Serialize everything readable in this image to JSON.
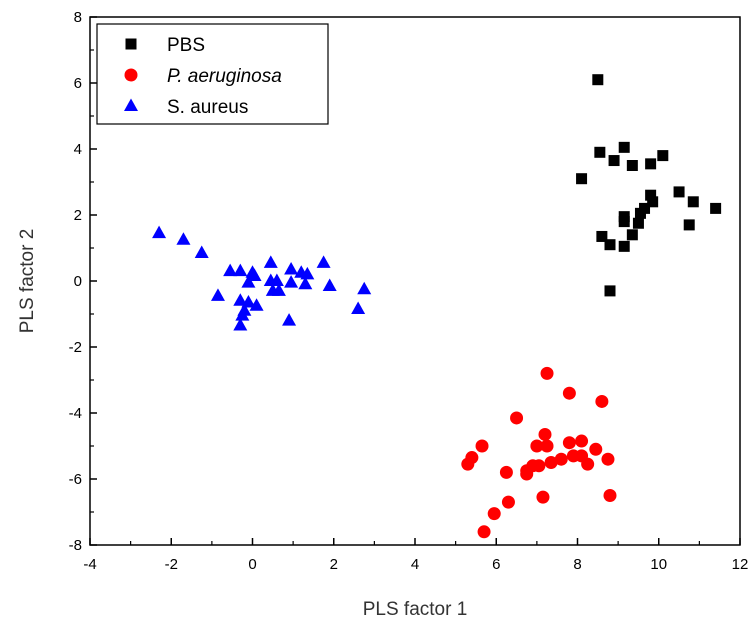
{
  "chart_data": {
    "type": "scatter",
    "title": "",
    "xlabel": "PLS factor 1",
    "ylabel": "PLS factor 2",
    "xlim": [
      -4,
      12
    ],
    "ylim": [
      -8,
      8
    ],
    "xticks": [
      -4,
      -2,
      0,
      2,
      4,
      6,
      8,
      10,
      12
    ],
    "yticks": [
      -8,
      -6,
      -4,
      -2,
      0,
      2,
      4,
      6,
      8
    ],
    "xtick_labels": [
      "-4",
      "-2",
      "0",
      "2",
      "4",
      "6",
      "8",
      "10",
      "12"
    ],
    "ytick_labels": [
      "-8",
      "-6",
      "-4",
      "-2",
      "0",
      "2",
      "4",
      "6",
      "8"
    ],
    "grid": false,
    "legend_position": "top-left",
    "series": [
      {
        "name": "PBS",
        "marker": "square",
        "italic": false,
        "color": "#000000",
        "points": [
          [
            8.5,
            6.1
          ],
          [
            8.55,
            3.9
          ],
          [
            8.9,
            3.65
          ],
          [
            9.15,
            4.05
          ],
          [
            9.35,
            3.5
          ],
          [
            9.8,
            3.55
          ],
          [
            10.1,
            3.8
          ],
          [
            8.1,
            3.1
          ],
          [
            9.8,
            2.6
          ],
          [
            10.5,
            2.7
          ],
          [
            10.85,
            2.4
          ],
          [
            11.4,
            2.2
          ],
          [
            9.65,
            2.2
          ],
          [
            9.55,
            2.05
          ],
          [
            9.85,
            2.4
          ],
          [
            9.15,
            1.95
          ],
          [
            9.15,
            1.8
          ],
          [
            9.5,
            1.75
          ],
          [
            10.75,
            1.7
          ],
          [
            8.6,
            1.35
          ],
          [
            9.35,
            1.4
          ],
          [
            8.8,
            1.1
          ],
          [
            9.15,
            1.05
          ],
          [
            8.8,
            -0.3
          ]
        ]
      },
      {
        "name": "P. aeruginosa",
        "marker": "circle",
        "italic": true,
        "color": "#ff0000",
        "points": [
          [
            7.25,
            -2.8
          ],
          [
            7.8,
            -3.4
          ],
          [
            8.6,
            -3.65
          ],
          [
            6.5,
            -4.15
          ],
          [
            7.2,
            -4.65
          ],
          [
            5.65,
            -5.0
          ],
          [
            7.0,
            -5.0
          ],
          [
            7.25,
            -5.0
          ],
          [
            7.8,
            -4.9
          ],
          [
            8.1,
            -4.85
          ],
          [
            8.45,
            -5.1
          ],
          [
            5.4,
            -5.35
          ],
          [
            5.3,
            -5.55
          ],
          [
            6.25,
            -5.8
          ],
          [
            6.75,
            -5.85
          ],
          [
            6.75,
            -5.75
          ],
          [
            6.9,
            -5.6
          ],
          [
            7.05,
            -5.6
          ],
          [
            7.35,
            -5.5
          ],
          [
            7.6,
            -5.4
          ],
          [
            7.9,
            -5.3
          ],
          [
            8.1,
            -5.3
          ],
          [
            8.25,
            -5.55
          ],
          [
            8.75,
            -5.4
          ],
          [
            7.15,
            -6.55
          ],
          [
            8.8,
            -6.5
          ],
          [
            6.3,
            -6.7
          ],
          [
            5.95,
            -7.05
          ],
          [
            5.7,
            -7.6
          ]
        ]
      },
      {
        "name": "S. aureus",
        "marker": "triangle",
        "italic": false,
        "color": "#0000ff",
        "points": [
          [
            -2.3,
            1.45
          ],
          [
            -1.7,
            1.25
          ],
          [
            -1.25,
            0.85
          ],
          [
            -0.55,
            0.3
          ],
          [
            -0.3,
            0.3
          ],
          [
            0.0,
            0.25
          ],
          [
            0.05,
            0.15
          ],
          [
            -0.1,
            -0.05
          ],
          [
            0.45,
            0.55
          ],
          [
            0.95,
            0.35
          ],
          [
            1.2,
            0.25
          ],
          [
            1.35,
            0.2
          ],
          [
            1.75,
            0.55
          ],
          [
            0.45,
            0.0
          ],
          [
            0.6,
            0.0
          ],
          [
            0.95,
            -0.05
          ],
          [
            1.3,
            -0.1
          ],
          [
            0.5,
            -0.3
          ],
          [
            0.65,
            -0.3
          ],
          [
            1.9,
            -0.15
          ],
          [
            -0.85,
            -0.45
          ],
          [
            -0.3,
            -0.6
          ],
          [
            -0.1,
            -0.65
          ],
          [
            0.1,
            -0.75
          ],
          [
            -0.2,
            -0.9
          ],
          [
            -0.25,
            -1.05
          ],
          [
            -0.3,
            -1.35
          ],
          [
            0.9,
            -1.2
          ],
          [
            2.6,
            -0.85
          ],
          [
            2.75,
            -0.25
          ]
        ]
      }
    ]
  }
}
